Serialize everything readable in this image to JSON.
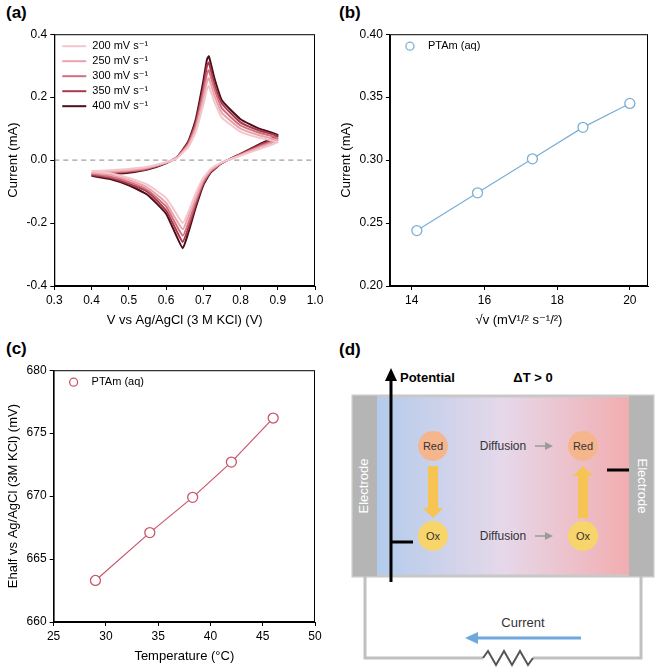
{
  "chart_data": [
    {
      "panel": "(a)",
      "type": "line",
      "x_label": "V vs Ag/AgCl (3 M KCl) (V)",
      "y_label": "Current (mA)",
      "x": [
        0.4,
        0.45,
        0.5,
        0.55,
        0.6,
        0.63,
        0.66,
        0.68,
        0.7,
        0.71,
        0.715,
        0.73,
        0.75,
        0.8,
        0.85,
        0.9,
        0.85,
        0.8,
        0.75,
        0.72,
        0.7,
        0.68,
        0.66,
        0.645,
        0.62,
        0.6,
        0.55,
        0.5,
        0.45,
        0.4
      ],
      "series": [
        {
          "name": "200 mV s⁻¹",
          "color": "#f4c6cb",
          "marker": "none",
          "line_style": "solid",
          "values": [
            -0.035,
            -0.032,
            -0.028,
            -0.021,
            -0.007,
            0.007,
            0.042,
            0.09,
            0.175,
            0.225,
            0.235,
            0.185,
            0.135,
            0.09,
            0.071,
            0.057,
            0.035,
            0.014,
            -0.007,
            -0.028,
            -0.057,
            -0.105,
            -0.165,
            -0.2,
            -0.155,
            -0.12,
            -0.078,
            -0.057,
            -0.042,
            -0.035
          ]
        },
        {
          "name": "250 mV s⁻¹",
          "color": "#e8a3ab",
          "marker": "none",
          "line_style": "solid",
          "values": [
            -0.04,
            -0.036,
            -0.032,
            -0.024,
            -0.008,
            0.008,
            0.047,
            0.1,
            0.195,
            0.25,
            0.26,
            0.205,
            0.15,
            0.1,
            0.079,
            0.063,
            0.04,
            0.016,
            -0.008,
            -0.032,
            -0.063,
            -0.12,
            -0.18,
            -0.22,
            -0.175,
            -0.135,
            -0.087,
            -0.063,
            -0.047,
            -0.04
          ]
        },
        {
          "name": "300 mV s⁻¹",
          "color": "#d0707e",
          "marker": "none",
          "line_style": "solid",
          "values": [
            -0.043,
            -0.039,
            -0.035,
            -0.026,
            -0.009,
            0.009,
            0.052,
            0.11,
            0.215,
            0.275,
            0.285,
            0.225,
            0.165,
            0.11,
            0.087,
            0.069,
            0.043,
            0.017,
            -0.009,
            -0.035,
            -0.069,
            -0.13,
            -0.2,
            -0.24,
            -0.19,
            -0.147,
            -0.095,
            -0.069,
            -0.052,
            -0.043
          ]
        },
        {
          "name": "350 mV s⁻¹",
          "color": "#a8394a",
          "marker": "none",
          "line_style": "solid",
          "values": [
            -0.047,
            -0.042,
            -0.037,
            -0.028,
            -0.009,
            0.009,
            0.056,
            0.12,
            0.23,
            0.3,
            0.31,
            0.24,
            0.18,
            0.12,
            0.094,
            0.075,
            0.047,
            0.019,
            -0.009,
            -0.037,
            -0.075,
            -0.14,
            -0.215,
            -0.26,
            -0.205,
            -0.16,
            -0.1,
            -0.075,
            -0.056,
            -0.047
          ]
        },
        {
          "name": "400 mV s⁻¹",
          "color": "#4d0d1a",
          "marker": "none",
          "line_style": "solid",
          "values": [
            -0.05,
            -0.045,
            -0.04,
            -0.03,
            -0.01,
            0.01,
            0.06,
            0.13,
            0.25,
            0.32,
            0.33,
            0.26,
            0.19,
            0.13,
            0.1,
            0.08,
            0.05,
            0.02,
            -0.01,
            -0.04,
            -0.08,
            -0.15,
            -0.23,
            -0.28,
            -0.22,
            -0.17,
            -0.11,
            -0.08,
            -0.06,
            -0.05
          ]
        }
      ],
      "xlim": [
        0.3,
        1.0
      ],
      "xticks": [
        0.3,
        0.4,
        0.5,
        0.6,
        0.7,
        0.8,
        0.9,
        {
          "value": 1.0,
          "label": "1.0"
        }
      ],
      "ylim": [
        -0.4,
        0.4
      ],
      "yticks": [
        -0.4,
        -0.2,
        {
          "value": 0,
          "label": "0.0"
        },
        0.2,
        0.4
      ],
      "reference_line": 0,
      "legend": "upper left",
      "grid": false
    },
    {
      "panel": "(b)",
      "type": "scatter",
      "x_label": "√v (mV¹/² s⁻¹/²)",
      "y_label": "Current (mA)",
      "x": [
        14.14,
        15.81,
        17.32,
        18.71,
        20
      ],
      "series": [
        {
          "name": "PTAm (aq)",
          "color": "#7bafd4",
          "marker": "open_circle",
          "line_style": "solid",
          "values": [
            0.244,
            0.274,
            0.301,
            0.326,
            0.345
          ]
        }
      ],
      "xlim": [
        13.4,
        20.5
      ],
      "xticks": [
        14,
        16,
        18,
        20
      ],
      "ylim": [
        0.2,
        0.4
      ],
      "yticks": [
        {
          "value": 0.2,
          "label": "0.20"
        },
        0.25,
        {
          "value": 0.3,
          "label": "0.30"
        },
        0.35,
        {
          "value": 0.4,
          "label": "0.40"
        }
      ],
      "legend": "upper left",
      "grid": false
    },
    {
      "panel": "(c)",
      "type": "scatter",
      "x_label": "Temperature (°C)",
      "y_label": "Ehalf vs Ag/AgCl (3M KCl) (mV)",
      "x": [
        29,
        34.2,
        38.3,
        42,
        46
      ],
      "series": [
        {
          "name": "PTAm (aq)",
          "color": "#c9566a",
          "marker": "open_circle",
          "line_style": "solid",
          "values": [
            663.3,
            667.1,
            669.9,
            672.7,
            676.2
          ]
        }
      ],
      "xlim": [
        25,
        50
      ],
      "xticks": [
        25,
        30,
        35,
        40,
        45,
        50
      ],
      "ylim": [
        660,
        680
      ],
      "yticks": [
        660,
        665,
        670,
        675,
        680
      ],
      "legend": "upper left",
      "grid": false
    }
  ],
  "diagram": {
    "panel": "(d)",
    "axis_label": "Potential",
    "condition": "ΔT > 0",
    "electrodes": [
      "Electrode",
      "Electrode"
    ],
    "left": {
      "top": "Red",
      "bottom": "Ox"
    },
    "right": {
      "top": "Red",
      "bottom": "Ox"
    },
    "transport": [
      "Diffusion",
      "Diffusion"
    ],
    "circuit_label": "Current"
  }
}
